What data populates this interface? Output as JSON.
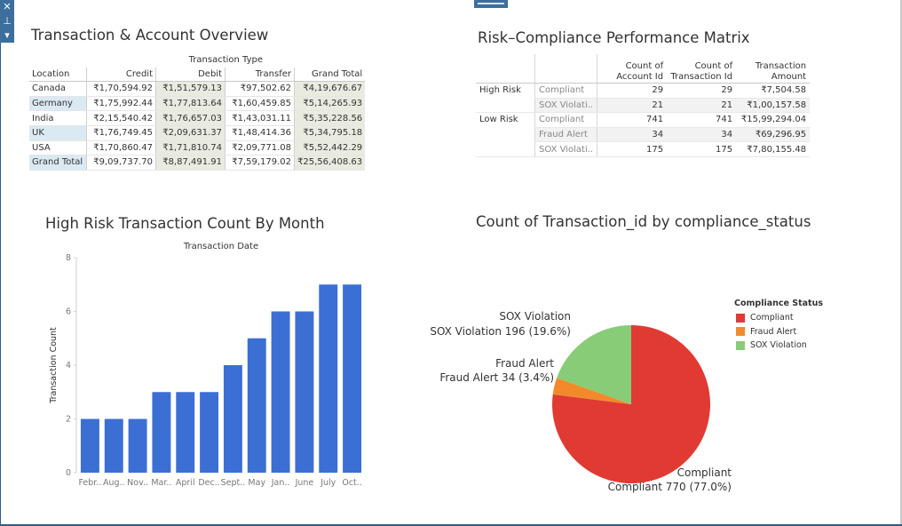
{
  "colors": {
    "bar": "#3b6fd4",
    "compliant": "#e03a33",
    "fraud": "#f28a2c",
    "sox": "#88cc77"
  },
  "toolbar": {
    "icons": [
      "close-icon",
      "pin-icon",
      "dropdown-icon"
    ],
    "close_glyph": "✕",
    "pin_glyph": "⊥",
    "dropdown_glyph": "▾"
  },
  "overview": {
    "title": "Transaction & Account Overview",
    "column_group": "Transaction Type",
    "headers": [
      "Location",
      "Credit",
      "Debit",
      "Transfer",
      "Grand Total"
    ],
    "rows": [
      {
        "location": "Canada",
        "credit": "₹1,70,594.92",
        "debit": "₹1,51,579.13",
        "transfer": "₹97,502.62",
        "total": "₹4,19,676.67"
      },
      {
        "location": "Germany",
        "credit": "₹1,75,992.44",
        "debit": "₹1,77,813.64",
        "transfer": "₹1,60,459.85",
        "total": "₹5,14,265.93"
      },
      {
        "location": "India",
        "credit": "₹2,15,540.42",
        "debit": "₹1,76,657.03",
        "transfer": "₹1,43,031.11",
        "total": "₹5,35,228.56"
      },
      {
        "location": "UK",
        "credit": "₹1,76,749.45",
        "debit": "₹2,09,631.37",
        "transfer": "₹1,48,414.36",
        "total": "₹5,34,795.18"
      },
      {
        "location": "USA",
        "credit": "₹1,70,860.47",
        "debit": "₹1,71,810.74",
        "transfer": "₹2,09,771.08",
        "total": "₹5,52,442.29"
      }
    ],
    "grand_total": {
      "location": "Grand Total",
      "credit": "₹9,09,737.70",
      "debit": "₹8,87,491.91",
      "transfer": "₹7,59,179.02",
      "total": "₹25,56,408.63"
    }
  },
  "matrix": {
    "title": "Risk–Compliance Performance Matrix",
    "headers": {
      "account": [
        "Count of",
        "Account Id"
      ],
      "transaction": [
        "Count of",
        "Transaction Id"
      ],
      "amount": [
        "Transaction",
        "Amount"
      ]
    },
    "groups": [
      {
        "label": "High Risk",
        "rows": [
          {
            "status": "Compliant",
            "account": "29",
            "transaction": "29",
            "amount": "₹7,504.58"
          },
          {
            "status": "SOX Violati..",
            "account": "21",
            "transaction": "21",
            "amount": "₹1,00,157.58"
          }
        ]
      },
      {
        "label": "Low Risk",
        "rows": [
          {
            "status": "Compliant",
            "account": "741",
            "transaction": "741",
            "amount": "₹15,99,294.04"
          },
          {
            "status": "Fraud Alert",
            "account": "34",
            "transaction": "34",
            "amount": "₹69,296.95"
          },
          {
            "status": "SOX Violati..",
            "account": "175",
            "transaction": "175",
            "amount": "₹7,80,155.48"
          }
        ]
      }
    ]
  },
  "bar_chart_title": "High Risk Transaction Count By Month",
  "pie_chart_title": "Count of Transaction_id by compliance_status",
  "legend": {
    "title": "Compliance Status",
    "items": [
      "Compliant",
      "Fraud Alert",
      "SOX Violation"
    ]
  },
  "chart_data": [
    {
      "type": "bar",
      "title": "High Risk Transaction Count By Month",
      "xlabel": "Transaction Date",
      "ylabel": "Transaction Count",
      "categories": [
        "Febr..",
        "Aug..",
        "Nov..",
        "Mar..",
        "April",
        "Dec..",
        "Sept..",
        "May",
        "Jan..",
        "June",
        "July",
        "Oct.."
      ],
      "values": [
        2,
        2,
        2,
        3,
        3,
        3,
        4,
        5,
        6,
        6,
        7,
        7
      ],
      "yticks": [
        0,
        2,
        4,
        6,
        8
      ],
      "ylim": [
        0,
        8
      ]
    },
    {
      "type": "pie",
      "title": "Count of Transaction_id by compliance_status",
      "slices": [
        {
          "name": "Compliant",
          "value": 770,
          "label": "Compliant 770 (77.0%)"
        },
        {
          "name": "Fraud Alert",
          "value": 34,
          "label": "Fraud Alert 34 (3.4%)"
        },
        {
          "name": "SOX Violation",
          "value": 196,
          "label": "SOX Violation 196 (19.6%)"
        }
      ],
      "legend_position": "right"
    }
  ]
}
